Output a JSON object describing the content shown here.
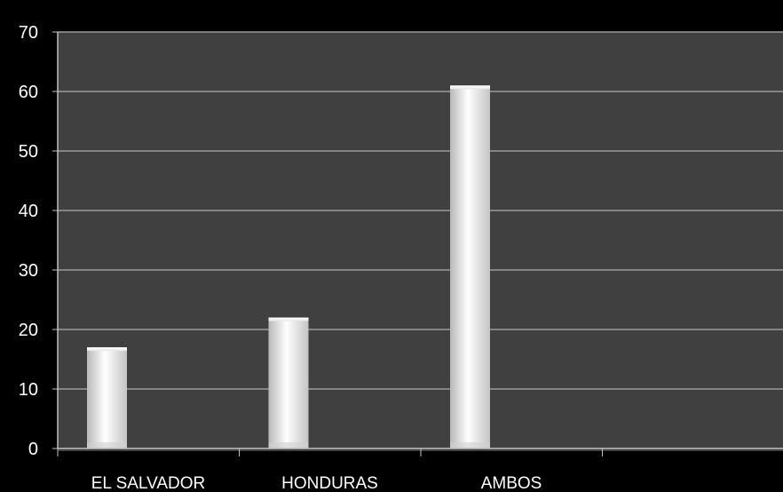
{
  "chart_data": {
    "type": "bar",
    "categories": [
      "EL SALVADOR",
      "HONDURAS",
      "AMBOS",
      ""
    ],
    "values": [
      17,
      22,
      61,
      null
    ],
    "ylim": [
      0,
      70
    ],
    "yticks": [
      0,
      10,
      20,
      30,
      40,
      50,
      60,
      70
    ],
    "grid": true,
    "legend": "none"
  },
  "colors": {
    "page_background": "#000000",
    "plot_background": "#404040",
    "gridline": "#9a9a9a",
    "axis": "#bfbfbf",
    "bar_light": "#ffffff",
    "bar_shade": "#bdbdbd",
    "text": "#ffffff"
  }
}
